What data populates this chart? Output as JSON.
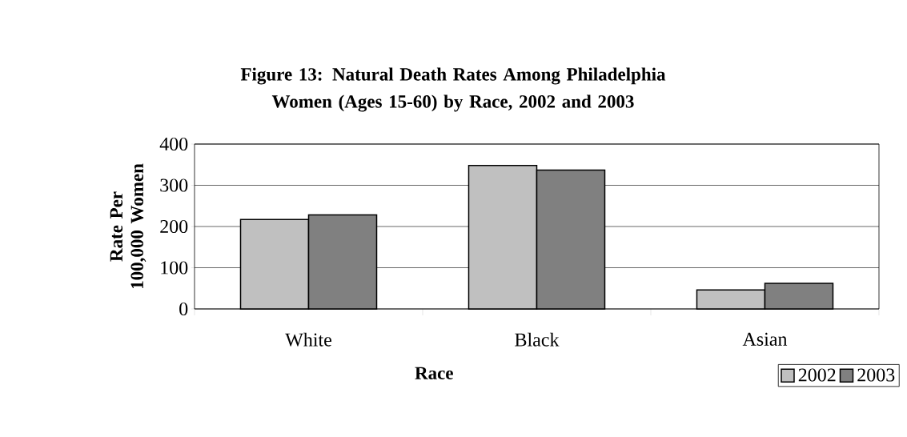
{
  "chart_data": {
    "type": "bar",
    "title": "Figure 13: Natural Death Rates Among Philadelphia Women (Ages 15-60) by Race, 2002 and 2003",
    "xlabel": "Race",
    "ylabel": "Rate Per 100,000 Women",
    "categories": [
      "White",
      "Black",
      "Asian"
    ],
    "series": [
      {
        "name": "2002",
        "color": "#c0c0c0",
        "values": [
          217,
          348,
          46
        ]
      },
      {
        "name": "2003",
        "color": "#808080",
        "values": [
          228,
          337,
          62
        ]
      }
    ],
    "ylim": [
      0,
      400
    ],
    "yticks": [
      0,
      100,
      200,
      300,
      400
    ],
    "grid": "y",
    "legend": "bottom right"
  }
}
